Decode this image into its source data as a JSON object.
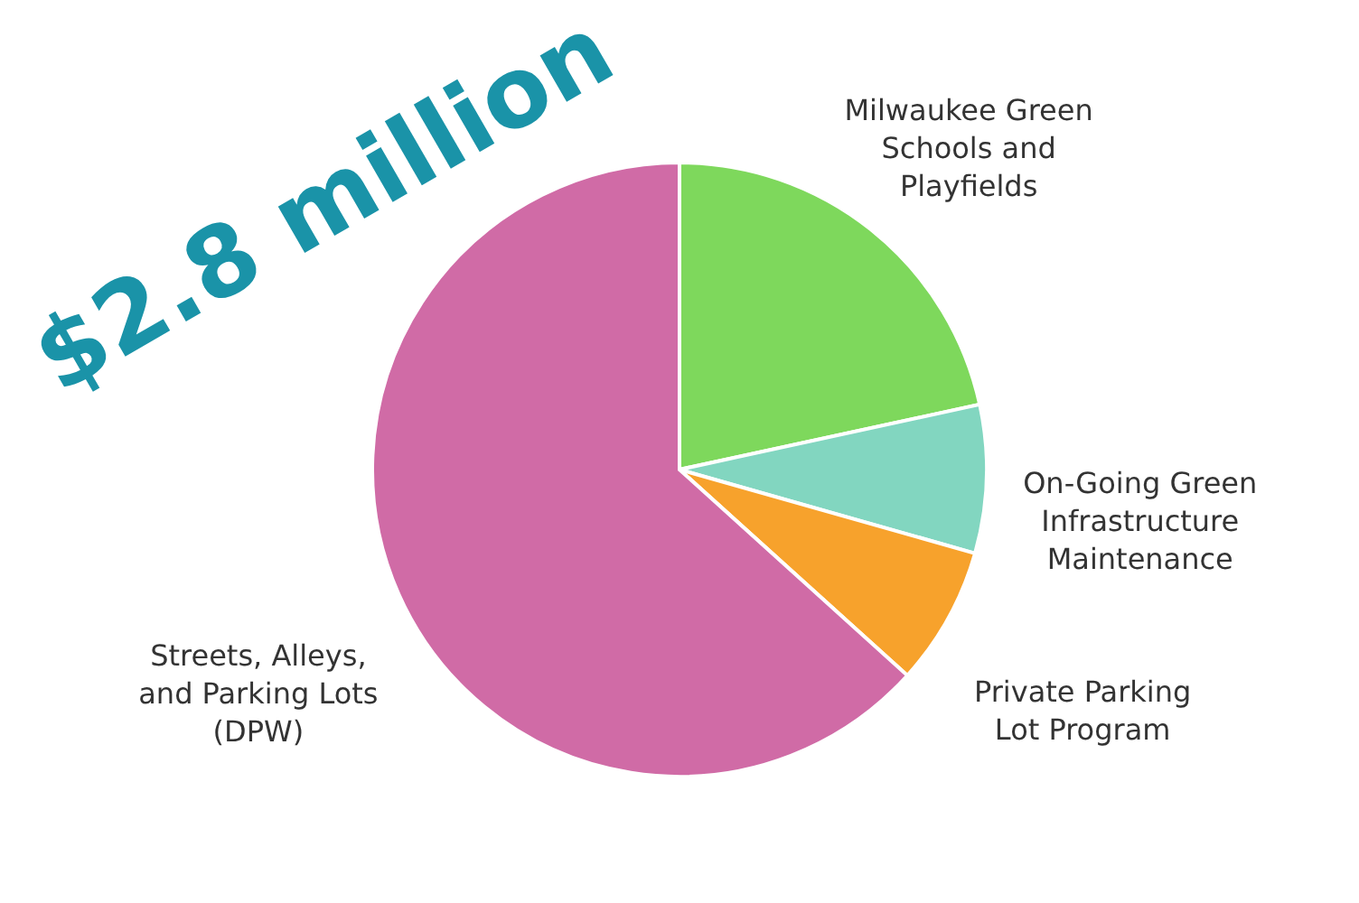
{
  "chart_data": {
    "type": "pie",
    "title": "$2.8 million",
    "categories": [
      "Milwaukee Green Schools and Playfields",
      "On-Going Green Infrastructure Maintenance",
      "Private Parking Lot Program",
      "Streets, Alleys, and Parking Lots (DPW)"
    ],
    "values": [
      21.6,
      7.8,
      7.3,
      63.3
    ],
    "colors": [
      "#7ed85c",
      "#82d6c0",
      "#f7a22c",
      "#d06ba6"
    ]
  }
}
